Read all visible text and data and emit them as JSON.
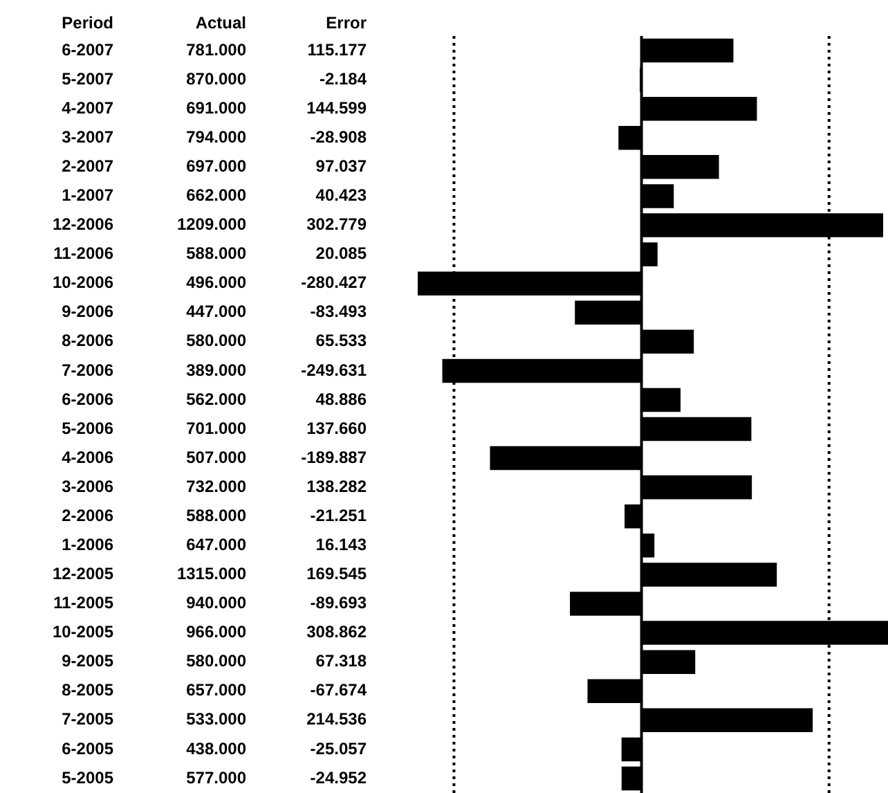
{
  "chart_data": {
    "type": "bar",
    "orientation": "horizontal",
    "ylabel": "Period",
    "xlabel": "Error",
    "categories": [
      "6-2007",
      "5-2007",
      "4-2007",
      "3-2007",
      "2-2007",
      "1-2007",
      "12-2006",
      "11-2006",
      "10-2006",
      "9-2006",
      "8-2006",
      "7-2006",
      "6-2006",
      "5-2006",
      "4-2006",
      "3-2006",
      "2-2006",
      "1-2006",
      "12-2005",
      "11-2005",
      "10-2005",
      "9-2005",
      "8-2005",
      "7-2005",
      "6-2005",
      "5-2005"
    ],
    "values": [
      115.177,
      -2.184,
      144.599,
      -28.908,
      97.037,
      40.423,
      302.779,
      20.085,
      -280.427,
      -83.493,
      65.533,
      -249.631,
      48.886,
      137.66,
      -189.887,
      138.282,
      -21.251,
      16.143,
      169.545,
      -89.693,
      308.862,
      67.318,
      -67.674,
      214.536,
      -25.057,
      -24.952
    ],
    "value_labels": [
      "115.177",
      "-2.184",
      "144.599",
      "-28.908",
      "97.037",
      "40.423",
      "302.779",
      "20.085",
      "-280.427",
      "-83.493",
      "65.533",
      "-249.631",
      "48.886",
      "137.660",
      "-189.887",
      "138.282",
      "-21.251",
      "16.143",
      "169.545",
      "-89.693",
      "308.862",
      "67.318",
      "-67.674",
      "214.536",
      "-25.057",
      "-24.952"
    ],
    "color": "#000000",
    "tick_labels": false,
    "ref_lines": [
      {
        "axis": "x",
        "value": -235,
        "line_style": "dotted",
        "color": "#000000"
      },
      {
        "axis": "x",
        "value": 235,
        "line_style": "dotted",
        "color": "#000000"
      }
    ],
    "annotations": [
      "Actual",
      "781.000",
      "870.000",
      "691.000",
      "794.000",
      "697.000",
      "662.000",
      "1209.000",
      "588.000",
      "496.000",
      "447.000",
      "580.000",
      "389.000",
      "562.000",
      "701.000",
      "507.000",
      "732.000",
      "588.000",
      "647.000",
      "1315.000",
      "940.000",
      "966.000",
      "580.000",
      "657.000",
      "533.000",
      "438.000",
      "577.000"
    ]
  }
}
